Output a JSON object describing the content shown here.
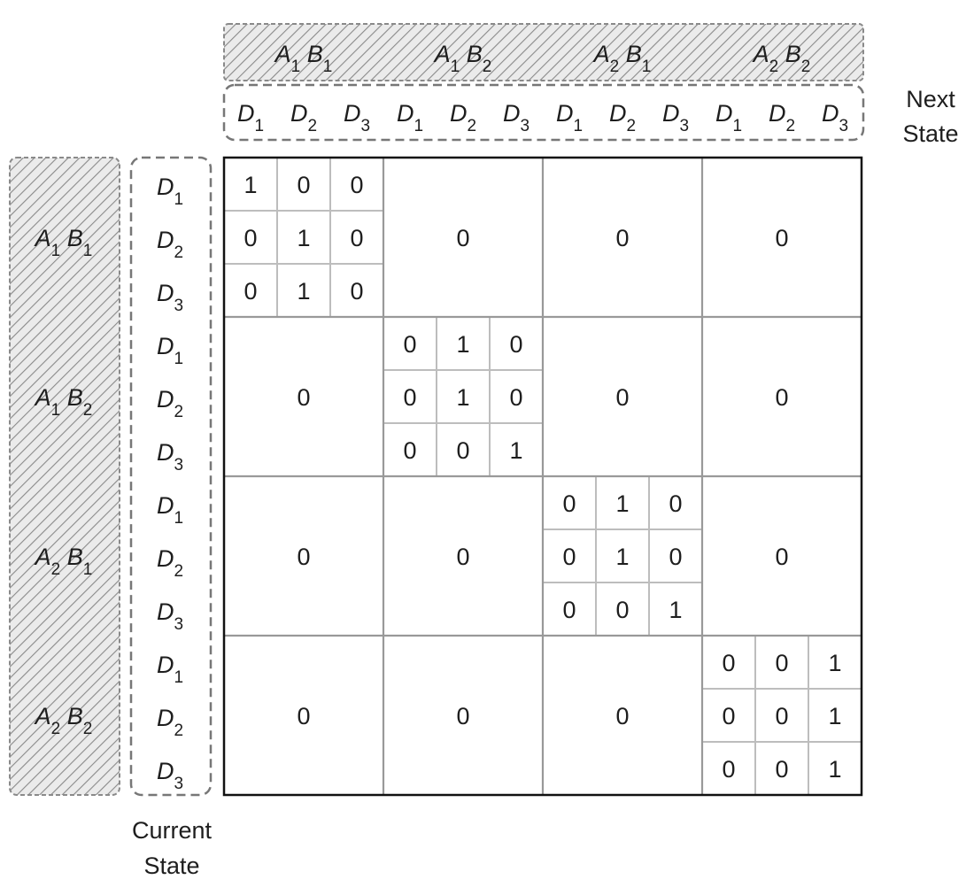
{
  "top_groups": [
    {
      "a": "A",
      "a_sub": "1",
      "b": "B",
      "b_sub": "1"
    },
    {
      "a": "A",
      "a_sub": "1",
      "b": "B",
      "b_sub": "2"
    },
    {
      "a": "A",
      "a_sub": "2",
      "b": "B",
      "b_sub": "1"
    },
    {
      "a": "A",
      "a_sub": "2",
      "b": "B",
      "b_sub": "2"
    }
  ],
  "d_labels": [
    {
      "sym": "D",
      "sub": "1"
    },
    {
      "sym": "D",
      "sub": "2"
    },
    {
      "sym": "D",
      "sub": "3"
    }
  ],
  "next_state_label": [
    "Next",
    "State"
  ],
  "current_state_label": [
    "Current",
    "State"
  ],
  "off_diagonal_value": "0",
  "diagonal_blocks": [
    [
      [
        "1",
        "0",
        "0"
      ],
      [
        "0",
        "1",
        "0"
      ],
      [
        "0",
        "1",
        "0"
      ]
    ],
    [
      [
        "0",
        "1",
        "0"
      ],
      [
        "0",
        "1",
        "0"
      ],
      [
        "0",
        "0",
        "1"
      ]
    ],
    [
      [
        "0",
        "1",
        "0"
      ],
      [
        "0",
        "1",
        "0"
      ],
      [
        "0",
        "0",
        "1"
      ]
    ],
    [
      [
        "0",
        "0",
        "1"
      ],
      [
        "0",
        "0",
        "1"
      ],
      [
        "0",
        "0",
        "1"
      ]
    ]
  ],
  "colors": {
    "hatch": "#888888",
    "hatch_fill": "#ebebeb",
    "dashed_border": "#777777",
    "matrix_border": "#111111",
    "block_grid": "#999999",
    "inner_grid": "#bdbdbd",
    "text": "#1e1e1e"
  }
}
